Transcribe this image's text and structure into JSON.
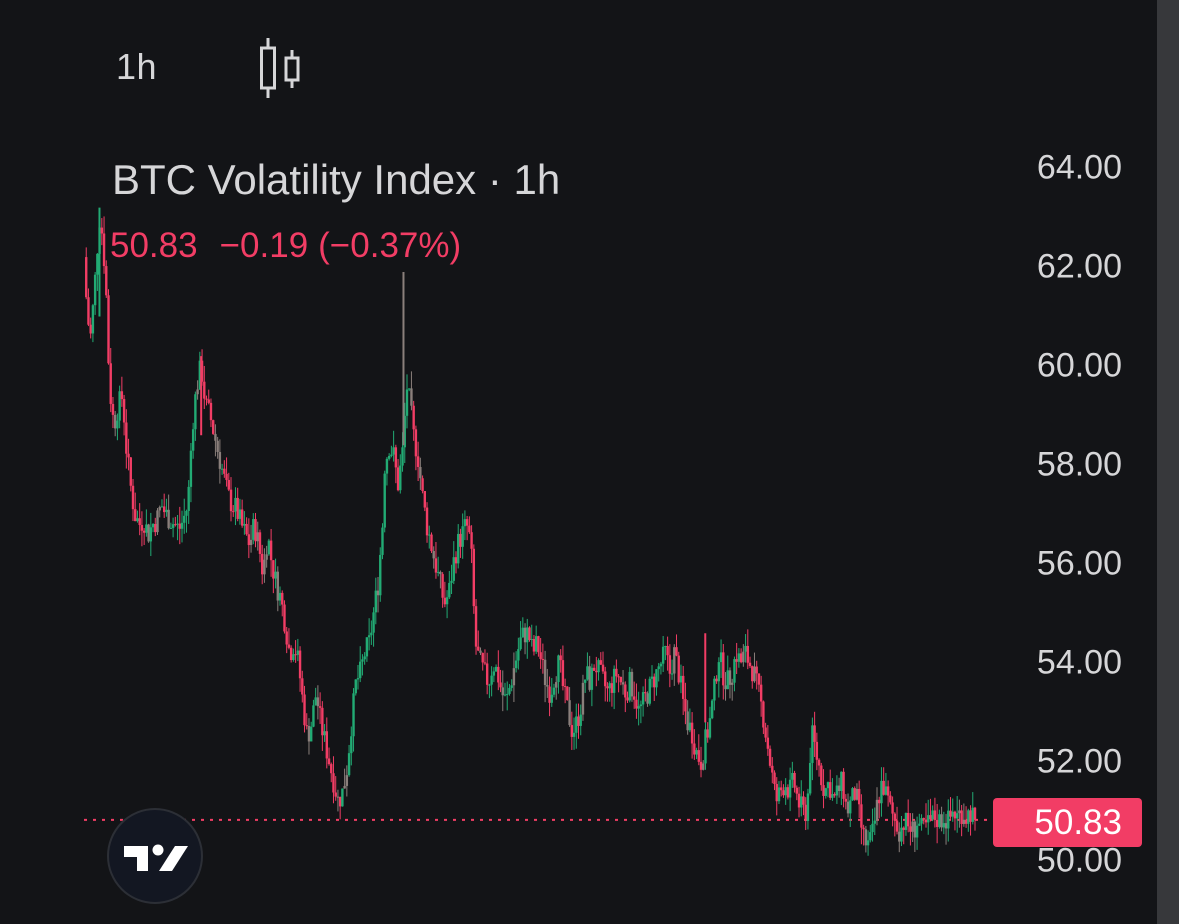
{
  "toolbar": {
    "interval_label": "1h",
    "chart_type_icon": "candlestick-icon"
  },
  "legend": {
    "title": "BTC Volatility Index · 1h",
    "last": "50.83",
    "change": "−0.19",
    "change_pct": "(−0.37%)"
  },
  "price_axis": {
    "labels": [
      "64.00",
      "62.00",
      "60.00",
      "58.00",
      "56.00",
      "54.00",
      "52.00",
      "50.00"
    ],
    "current_price_badge": "50.83"
  },
  "colors": {
    "background": "#131417",
    "up": "#22ab74",
    "down": "#f23d65",
    "neutral": "#8a7f7b",
    "text": "#d6d6d8",
    "scroll_strip": "#37383b"
  },
  "logo": {
    "name": "tradingview-logo"
  },
  "chart_data": {
    "type": "candlestick",
    "title": "BTC Volatility Index · 1h",
    "interval": "1h",
    "last_price": 50.83,
    "change": -0.19,
    "change_pct": -0.37,
    "ylim": [
      49.5,
      65
    ],
    "yticks": [
      50,
      52,
      54,
      56,
      58,
      60,
      62,
      64
    ],
    "grid": false,
    "price_line": 50.83,
    "close_path": [
      [
        0,
        62.2
      ],
      [
        3,
        61.0
      ],
      [
        6,
        60.6
      ],
      [
        9,
        61.4
      ],
      [
        12,
        62.4
      ],
      [
        14,
        63.0
      ],
      [
        17,
        62.6
      ],
      [
        20,
        61.5
      ],
      [
        23,
        59.6
      ],
      [
        27,
        58.8
      ],
      [
        31,
        59.2
      ],
      [
        35,
        59.4
      ],
      [
        38,
        58.4
      ],
      [
        42,
        57.6
      ],
      [
        46,
        57.0
      ],
      [
        50,
        56.8
      ],
      [
        54,
        56.9
      ],
      [
        58,
        56.6
      ],
      [
        62,
        56.8
      ],
      [
        66,
        56.9
      ],
      [
        70,
        57.2
      ],
      [
        74,
        57.0
      ],
      [
        78,
        56.9
      ],
      [
        82,
        56.8
      ],
      [
        86,
        56.7
      ],
      [
        90,
        56.9
      ],
      [
        94,
        57.2
      ],
      [
        98,
        58.8
      ],
      [
        102,
        59.6
      ],
      [
        106,
        60.0
      ],
      [
        110,
        59.2
      ],
      [
        114,
        59.0
      ],
      [
        118,
        58.6
      ],
      [
        122,
        58.2
      ],
      [
        126,
        57.8
      ],
      [
        130,
        57.4
      ],
      [
        134,
        57.2
      ],
      [
        138,
        57.1
      ],
      [
        142,
        56.8
      ],
      [
        146,
        56.6
      ],
      [
        150,
        56.4
      ],
      [
        154,
        56.8
      ],
      [
        158,
        56.4
      ],
      [
        162,
        55.8
      ],
      [
        166,
        56.6
      ],
      [
        170,
        56.0
      ],
      [
        174,
        55.6
      ],
      [
        178,
        55.3
      ],
      [
        182,
        54.8
      ],
      [
        186,
        54.2
      ],
      [
        190,
        54.4
      ],
      [
        194,
        54.0
      ],
      [
        198,
        53.2
      ],
      [
        202,
        52.5
      ],
      [
        206,
        52.8
      ],
      [
        210,
        53.4
      ],
      [
        214,
        52.8
      ],
      [
        218,
        52.4
      ],
      [
        222,
        52.0
      ],
      [
        226,
        51.6
      ],
      [
        230,
        51.2
      ],
      [
        234,
        51.4
      ],
      [
        238,
        51.9
      ],
      [
        242,
        52.8
      ],
      [
        246,
        53.6
      ],
      [
        250,
        53.8
      ],
      [
        254,
        54.2
      ],
      [
        258,
        54.4
      ],
      [
        262,
        55.0
      ],
      [
        266,
        55.6
      ],
      [
        270,
        56.8
      ],
      [
        272,
        58.0
      ],
      [
        276,
        58.4
      ],
      [
        280,
        58.2
      ],
      [
        284,
        57.6
      ],
      [
        288,
        58.2
      ],
      [
        292,
        59.6
      ],
      [
        295,
        59.2
      ],
      [
        298,
        58.6
      ],
      [
        302,
        58.2
      ],
      [
        306,
        57.4
      ],
      [
        310,
        56.8
      ],
      [
        314,
        56.4
      ],
      [
        318,
        56.0
      ],
      [
        322,
        55.6
      ],
      [
        326,
        55.2
      ],
      [
        330,
        55.4
      ],
      [
        334,
        56.0
      ],
      [
        338,
        56.4
      ],
      [
        342,
        56.6
      ],
      [
        346,
        56.8
      ],
      [
        350,
        56.4
      ],
      [
        354,
        54.4
      ],
      [
        358,
        54.0
      ],
      [
        362,
        53.8
      ],
      [
        366,
        53.6
      ],
      [
        370,
        54.0
      ],
      [
        374,
        53.8
      ],
      [
        378,
        53.4
      ],
      [
        382,
        53.2
      ],
      [
        386,
        53.6
      ],
      [
        390,
        54.0
      ],
      [
        394,
        54.4
      ],
      [
        398,
        54.6
      ],
      [
        402,
        54.6
      ],
      [
        406,
        54.2
      ],
      [
        410,
        54.4
      ],
      [
        414,
        54.0
      ],
      [
        418,
        53.6
      ],
      [
        422,
        53.4
      ],
      [
        426,
        53.8
      ],
      [
        430,
        54.0
      ],
      [
        434,
        53.4
      ],
      [
        438,
        53.0
      ],
      [
        442,
        52.6
      ],
      [
        446,
        52.8
      ],
      [
        450,
        53.2
      ],
      [
        454,
        53.8
      ],
      [
        458,
        53.6
      ],
      [
        462,
        54.0
      ],
      [
        466,
        53.8
      ],
      [
        470,
        53.6
      ],
      [
        474,
        53.4
      ],
      [
        478,
        53.6
      ],
      [
        482,
        53.8
      ],
      [
        486,
        53.6
      ],
      [
        490,
        53.4
      ],
      [
        494,
        53.6
      ],
      [
        498,
        53.4
      ],
      [
        502,
        53.0
      ],
      [
        506,
        53.2
      ],
      [
        510,
        53.4
      ],
      [
        514,
        53.6
      ],
      [
        518,
        53.8
      ],
      [
        522,
        54.0
      ],
      [
        526,
        54.2
      ],
      [
        530,
        53.8
      ],
      [
        534,
        54.2
      ],
      [
        538,
        53.8
      ],
      [
        542,
        53.2
      ],
      [
        546,
        52.8
      ],
      [
        550,
        52.6
      ],
      [
        554,
        52.2
      ],
      [
        558,
        52.0
      ],
      [
        562,
        52.4
      ],
      [
        566,
        52.8
      ],
      [
        570,
        53.4
      ],
      [
        574,
        54.2
      ],
      [
        578,
        53.8
      ],
      [
        582,
        53.6
      ],
      [
        586,
        53.8
      ],
      [
        590,
        54.2
      ],
      [
        594,
        54.0
      ],
      [
        598,
        54.2
      ],
      [
        602,
        54.0
      ],
      [
        606,
        53.8
      ],
      [
        610,
        53.4
      ],
      [
        614,
        53.0
      ],
      [
        618,
        52.4
      ],
      [
        622,
        51.8
      ],
      [
        626,
        51.2
      ],
      [
        630,
        51.4
      ],
      [
        634,
        51.6
      ],
      [
        638,
        51.4
      ],
      [
        642,
        51.6
      ],
      [
        646,
        51.2
      ],
      [
        650,
        51.0
      ],
      [
        654,
        51.0
      ],
      [
        658,
        52.6
      ],
      [
        662,
        52.2
      ],
      [
        666,
        51.8
      ],
      [
        670,
        51.4
      ],
      [
        674,
        51.6
      ],
      [
        678,
        51.2
      ],
      [
        682,
        51.4
      ],
      [
        686,
        51.6
      ],
      [
        690,
        51.0
      ],
      [
        694,
        51.2
      ],
      [
        698,
        51.4
      ],
      [
        702,
        50.8
      ],
      [
        706,
        50.4
      ],
      [
        710,
        50.3
      ],
      [
        714,
        50.6
      ],
      [
        718,
        51.2
      ],
      [
        722,
        51.6
      ],
      [
        726,
        51.3
      ],
      [
        730,
        51.0
      ],
      [
        734,
        50.8
      ],
      [
        738,
        50.6
      ],
      [
        742,
        50.8
      ],
      [
        746,
        50.7
      ],
      [
        750,
        50.6
      ],
      [
        754,
        50.8
      ],
      [
        758,
        50.6
      ],
      [
        762,
        50.7
      ],
      [
        766,
        50.8
      ],
      [
        770,
        50.9
      ],
      [
        774,
        50.8
      ],
      [
        778,
        50.9
      ],
      [
        782,
        50.8
      ],
      [
        786,
        51.0
      ],
      [
        790,
        50.9
      ],
      [
        794,
        51.0
      ],
      [
        798,
        50.9
      ],
      [
        802,
        51.0
      ],
      [
        806,
        50.83
      ]
    ]
  }
}
